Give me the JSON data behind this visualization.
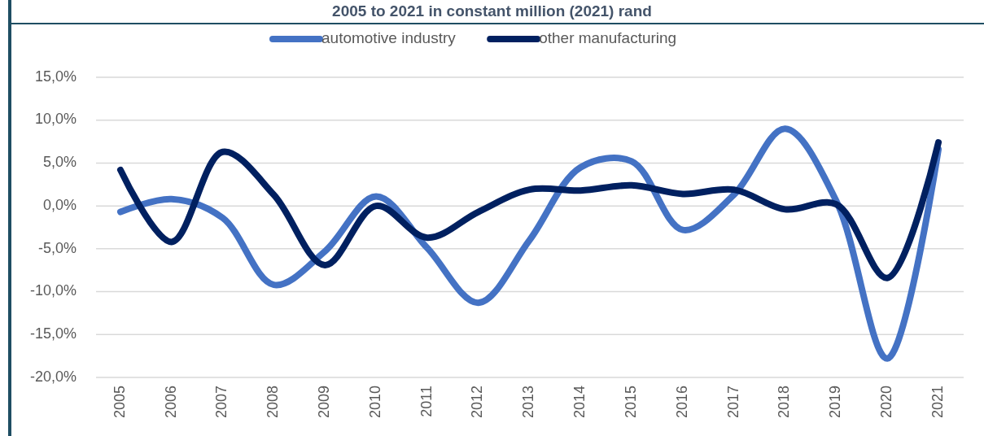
{
  "chart_data": {
    "type": "line",
    "title": "2005 to 2021 in constant million (2021) rand",
    "categories": [
      "2005",
      "2006",
      "2007",
      "2008",
      "2009",
      "2010",
      "2011",
      "2012",
      "2013",
      "2014",
      "2015",
      "2016",
      "2017",
      "2018",
      "2019",
      "2020",
      "2021"
    ],
    "series": [
      {
        "name": "automotive industry",
        "color": "#4472c4",
        "values": [
          -0.7,
          0.8,
          -1.4,
          -9.2,
          -5.3,
          1.1,
          -4.9,
          -11.3,
          -4.0,
          4.5,
          5.2,
          -2.8,
          1.3,
          9.0,
          0.6,
          -17.8,
          6.6
        ]
      },
      {
        "name": "other manufacturing",
        "color": "#002060",
        "values": [
          4.2,
          -4.2,
          6.3,
          1.3,
          -6.9,
          0.0,
          -3.7,
          -0.7,
          1.9,
          1.8,
          2.4,
          1.4,
          1.9,
          -0.4,
          0.2,
          -8.4,
          7.4
        ]
      }
    ],
    "ylim": [
      -20,
      15
    ],
    "yticks": [
      {
        "value": -20,
        "label": "-20,0%"
      },
      {
        "value": -15,
        "label": "-15,0%"
      },
      {
        "value": -10,
        "label": "-10,0%"
      },
      {
        "value": -5,
        "label": "-5,0%"
      },
      {
        "value": 0,
        "label": "0,0%"
      },
      {
        "value": 5,
        "label": "5,0%"
      },
      {
        "value": 10,
        "label": "10,0%"
      },
      {
        "value": 15,
        "label": "15,0%"
      }
    ],
    "grid": "y",
    "legend": "top",
    "marker": "none",
    "line_style": "solid"
  }
}
